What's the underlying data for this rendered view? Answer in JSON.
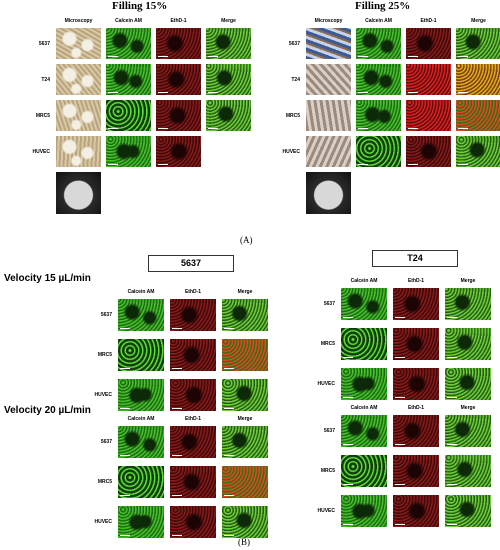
{
  "panelA": {
    "left_title": "Filling 15%",
    "right_title": "Filling 25%",
    "col_headers": [
      "Microscopy",
      "Calcein AM",
      "EthD-1",
      "Merge"
    ],
    "rows": [
      "5637",
      "T24",
      "MRC5",
      "HUVEC"
    ],
    "letter": "(A)"
  },
  "panelB": {
    "letter": "(B)",
    "velocity_15": "Velocity 15 µL/min",
    "velocity_20": "Velocity 20 µL/min",
    "group_left": "5637",
    "group_right": "T24",
    "col_headers": [
      "Calcein AM",
      "EthD-1",
      "Merge"
    ],
    "rows": [
      "5637",
      "MRC5",
      "HUVEC"
    ]
  },
  "colors": {
    "green": "#2f9a1e",
    "dark_green": "#1f5e14",
    "red": "#6b1010",
    "dark_red": "#2a0808",
    "microscopy": "#c8b89a"
  }
}
